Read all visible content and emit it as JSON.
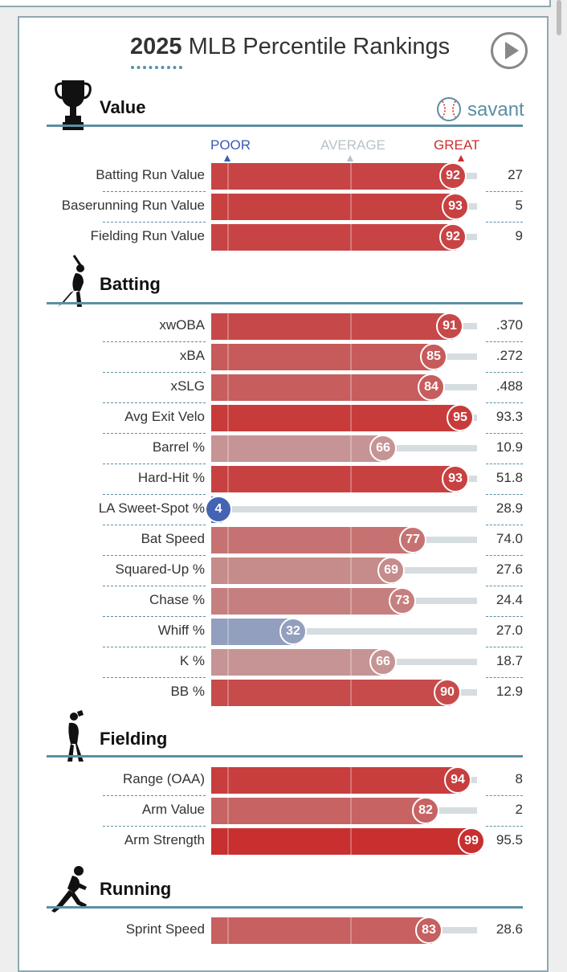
{
  "title": {
    "bold": "2025",
    "rest": " MLB Percentile Rankings"
  },
  "brand": {
    "name": "savant"
  },
  "header": {
    "poor": "POOR",
    "average": "AVERAGE",
    "great": "GREAT"
  },
  "colors": {
    "accent": "#5b8fa3",
    "poor": "#3a5bb1",
    "great": "#cc2d2d",
    "track": "#d5dde0"
  },
  "chart_data": {
    "type": "bar",
    "title": "2025 MLB Percentile Rankings",
    "xlim": [
      0,
      100
    ],
    "sections": [
      {
        "name": "Value",
        "icon": "trophy-icon",
        "metrics": [
          {
            "label": "Batting Run Value",
            "percentile": 92,
            "value": "27"
          },
          {
            "label": "Baserunning Run Value",
            "percentile": 93,
            "value": "5"
          },
          {
            "label": "Fielding Run Value",
            "percentile": 92,
            "value": "9"
          }
        ]
      },
      {
        "name": "Batting",
        "icon": "batter-icon",
        "metrics": [
          {
            "label": "xwOBA",
            "percentile": 91,
            "value": ".370"
          },
          {
            "label": "xBA",
            "percentile": 85,
            "value": ".272"
          },
          {
            "label": "xSLG",
            "percentile": 84,
            "value": ".488"
          },
          {
            "label": "Avg Exit Velo",
            "percentile": 95,
            "value": "93.3"
          },
          {
            "label": "Barrel %",
            "percentile": 66,
            "value": "10.9"
          },
          {
            "label": "Hard-Hit %",
            "percentile": 93,
            "value": "51.8"
          },
          {
            "label": "LA Sweet-Spot %",
            "percentile": 4,
            "value": "28.9"
          },
          {
            "label": "Bat Speed",
            "percentile": 77,
            "value": "74.0"
          },
          {
            "label": "Squared-Up %",
            "percentile": 69,
            "value": "27.6"
          },
          {
            "label": "Chase %",
            "percentile": 73,
            "value": "24.4"
          },
          {
            "label": "Whiff %",
            "percentile": 32,
            "value": "27.0"
          },
          {
            "label": "K %",
            "percentile": 66,
            "value": "18.7"
          },
          {
            "label": "BB %",
            "percentile": 90,
            "value": "12.9"
          }
        ]
      },
      {
        "name": "Fielding",
        "icon": "fielder-icon",
        "metrics": [
          {
            "label": "Range (OAA)",
            "percentile": 94,
            "value": "8"
          },
          {
            "label": "Arm Value",
            "percentile": 82,
            "value": "2"
          },
          {
            "label": "Arm Strength",
            "percentile": 99,
            "value": "95.5"
          }
        ]
      },
      {
        "name": "Running",
        "icon": "runner-icon",
        "metrics": [
          {
            "label": "Sprint Speed",
            "percentile": 83,
            "value": "28.6"
          }
        ]
      }
    ]
  }
}
